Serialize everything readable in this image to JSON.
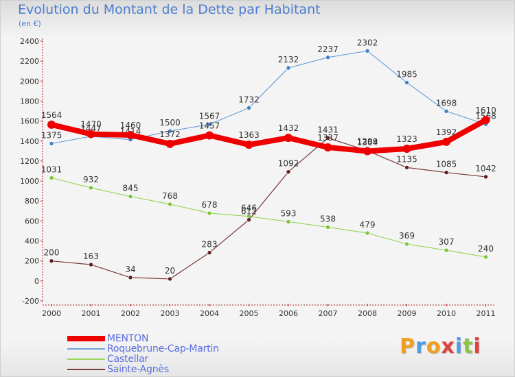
{
  "chart_data": {
    "type": "line",
    "title": "Evolution du Montant de la Dette par Habitant",
    "subtitle": "(en €)",
    "categories": [
      "2000",
      "2001",
      "2002",
      "2003",
      "2004",
      "2005",
      "2006",
      "2007",
      "2008",
      "2009",
      "2010",
      "2011"
    ],
    "ylim": [
      -200,
      2400
    ],
    "yticks": [
      -200,
      0,
      200,
      400,
      600,
      800,
      1000,
      1200,
      1400,
      1600,
      1800,
      2000,
      2200,
      2400
    ],
    "grid": false,
    "legend_position": "bottom-left",
    "series": [
      {
        "name": "Roquebrune-Cap-Martin",
        "color": "#6fa3d9",
        "marker": "#3f7fc7",
        "values": [
          1375,
          1447,
          1414,
          1500,
          1567,
          1732,
          2132,
          2237,
          2302,
          1985,
          1698,
          1568
        ],
        "value_labels": [
          "1375",
          "1447",
          "1414",
          "1500",
          "1567",
          "1732",
          "2132",
          "2237",
          "2302",
          "1985",
          "1698",
          "1568"
        ]
      },
      {
        "name": "Castellar",
        "color": "#9ad65e",
        "marker": "#7cc43a",
        "values": [
          1031,
          932,
          845,
          768,
          678,
          646,
          593,
          538,
          479,
          369,
          307,
          240
        ],
        "value_labels": [
          "1031",
          "932",
          "845",
          "768",
          "678",
          "646",
          "593",
          "538",
          "479",
          "369",
          "307",
          "240"
        ]
      },
      {
        "name": "Sainte-Agnès",
        "color": "#7a3a3a",
        "marker": "#5e1f1f",
        "values": [
          200,
          163,
          34,
          20,
          283,
          612,
          1092,
          1431,
          1304,
          1135,
          1085,
          1042
        ],
        "value_labels": [
          "200",
          "163",
          "34",
          "20",
          "283",
          "612",
          "1092",
          "1431",
          "1304",
          "1135",
          "1085",
          "1042"
        ]
      },
      {
        "name": "MENTON",
        "color": "#ee0000",
        "marker": "#ee0000",
        "values": [
          1564,
          1470,
          1460,
          1372,
          1457,
          1363,
          1432,
          1337,
          1299,
          1323,
          1392,
          1610
        ],
        "value_labels": [
          "1564",
          "1470",
          "1460",
          "1372",
          "1457",
          "1363",
          "1432",
          "1337",
          "1299",
          "1323",
          "1392",
          "1610"
        ]
      }
    ]
  },
  "legend": {
    "items": [
      {
        "label": "MENTON",
        "color": "#ee0000"
      },
      {
        "label": "Roquebrune-Cap-Martin",
        "color": "#6fa3d9"
      },
      {
        "label": "Castellar",
        "color": "#9ad65e"
      },
      {
        "label": "Sainte-Agnès",
        "color": "#7a3a3a"
      }
    ]
  },
  "logo": {
    "letters": [
      "P",
      "r",
      "o",
      "x",
      "i",
      "t",
      "i"
    ],
    "colors": [
      "#f0a020",
      "#4f9de0",
      "#f0a020",
      "#e04040",
      "#4f9de0",
      "#8cc63f",
      "#e04040"
    ]
  }
}
